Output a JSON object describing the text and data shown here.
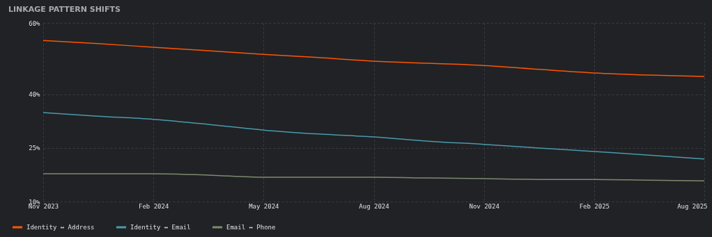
{
  "chart_data": {
    "type": "line",
    "title": "LINKAGE PATTERN SHIFTS",
    "categories": [
      "Nov 2023",
      null,
      "Feb 2024",
      null,
      "May 2024",
      null,
      "Aug 2024",
      null,
      "Nov 2024",
      null,
      "Feb 2025",
      null,
      "Aug 2025"
    ],
    "series": [
      {
        "name": "Identity ↔ Address",
        "color": "#ff5500",
        "values": [
          55.1,
          54.2,
          53.2,
          52.2,
          51.2,
          50.3,
          49.3,
          48.7,
          48.1,
          47.0,
          46.0,
          45.4,
          45.0
        ]
      },
      {
        "name": "Identity ↔ Email",
        "color": "#4a9aab",
        "values": [
          34.9,
          33.9,
          33.0,
          31.6,
          30.0,
          28.9,
          28.1,
          26.9,
          26.0,
          25.0,
          24.0,
          23.0,
          21.9
        ]
      },
      {
        "name": "Email ↔ Phone",
        "color": "#7d8b6e",
        "values": [
          17.8,
          17.8,
          17.8,
          17.4,
          16.8,
          16.8,
          16.8,
          16.6,
          16.4,
          16.2,
          16.2,
          16.0,
          15.8
        ]
      }
    ],
    "ylim": [
      10,
      60
    ],
    "yticks": [
      {
        "value": 10,
        "label": "10%"
      },
      {
        "value": 25,
        "label": "25%"
      },
      {
        "value": 40,
        "label": "40%"
      },
      {
        "value": 60,
        "label": "60%"
      }
    ],
    "grid": true,
    "legend": "bottom",
    "marker": "none",
    "line_style": "solid"
  }
}
